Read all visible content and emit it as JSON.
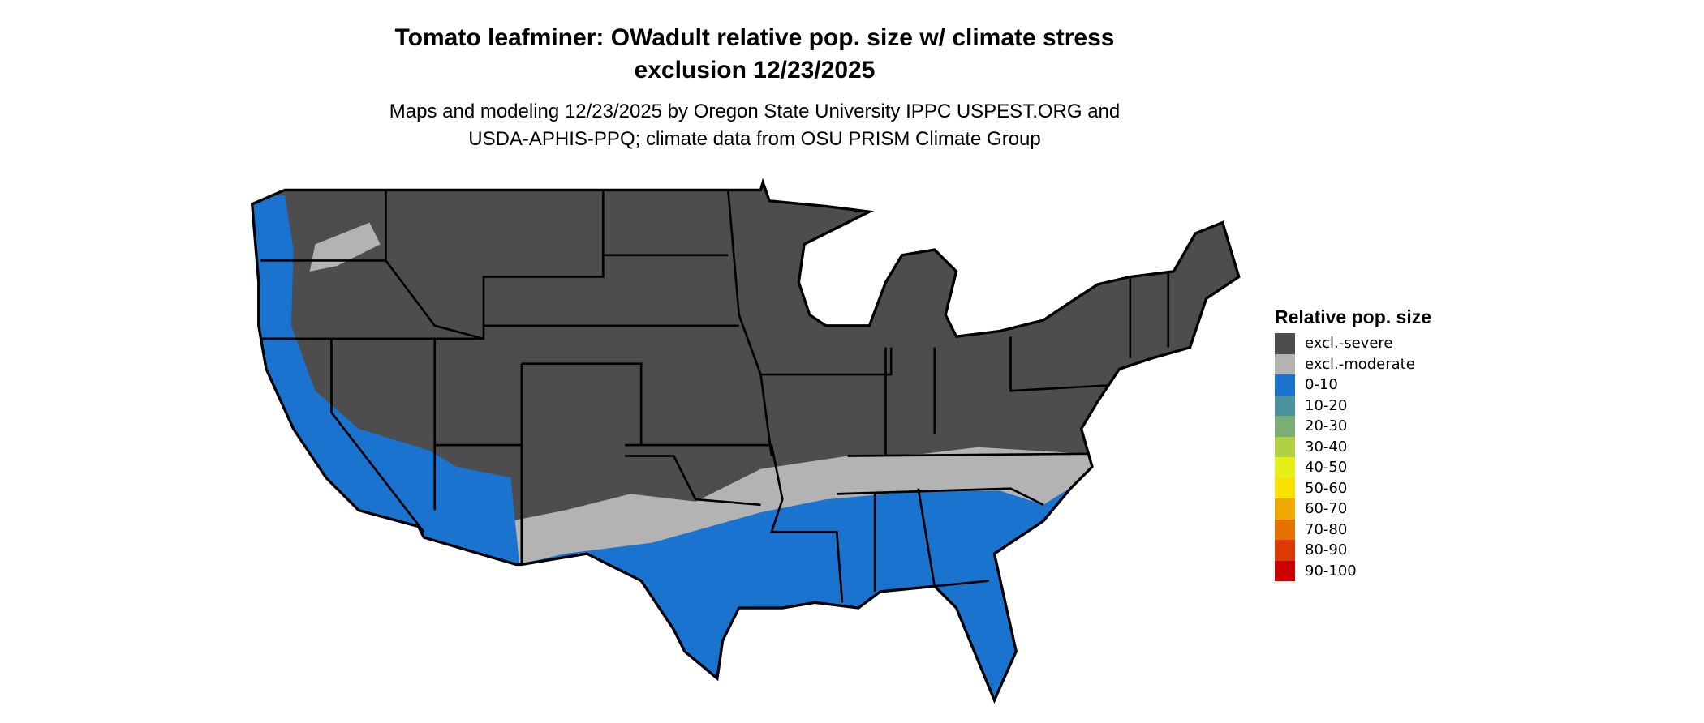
{
  "title_line1": "Tomato leafminer: OWadult relative pop. size w/ climate stress",
  "title_line2": "exclusion 12/23/2025",
  "subtitle_line1": "Maps and modeling 12/23/2025 by Oregon State University IPPC USPEST.ORG and",
  "subtitle_line2": "USDA-APHIS-PPQ; climate data from OSU PRISM Climate Group",
  "legend": {
    "title": "Relative pop. size",
    "items": [
      {
        "label": "excl.-severe",
        "color": "#4d4d4d"
      },
      {
        "label": "excl.-moderate",
        "color": "#b3b3b3"
      },
      {
        "label": "0-10",
        "color": "#1a73cf"
      },
      {
        "label": "10-20",
        "color": "#4a919e"
      },
      {
        "label": "20-30",
        "color": "#7bae74"
      },
      {
        "label": "30-40",
        "color": "#b3d045"
      },
      {
        "label": "40-50",
        "color": "#e5f018"
      },
      {
        "label": "50-60",
        "color": "#f8e000"
      },
      {
        "label": "60-70",
        "color": "#f0a800"
      },
      {
        "label": "70-80",
        "color": "#e67000"
      },
      {
        "label": "80-90",
        "color": "#db3a00"
      },
      {
        "label": "90-100",
        "color": "#cc0000"
      }
    ]
  },
  "map": {
    "region": "Contiguous United States",
    "state_borders": "#000000"
  }
}
